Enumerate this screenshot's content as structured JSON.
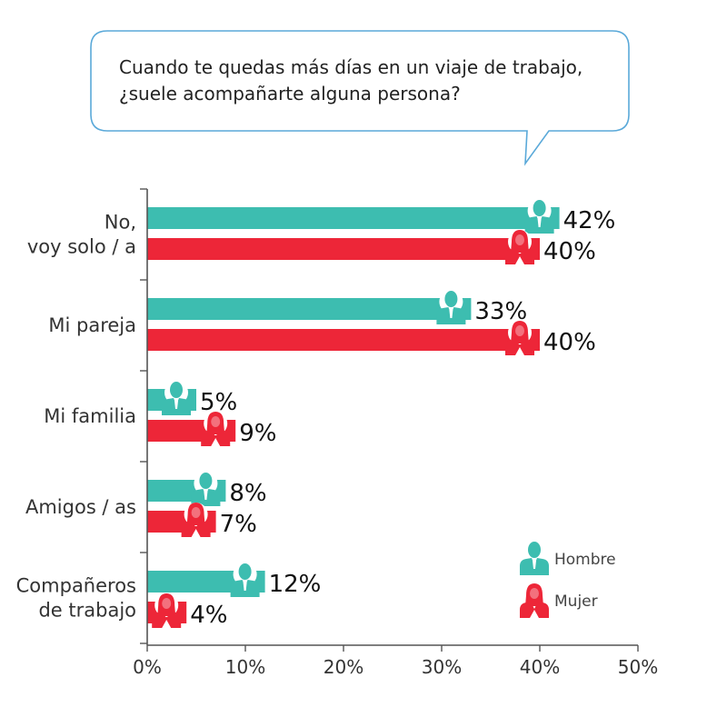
{
  "question": {
    "line1": "Cuando te quedas más días en un viaje de trabajo,",
    "line2": "¿suele acompañarte alguna persona?"
  },
  "legend": {
    "male_label": "Hombre",
    "female_label": "Mujer"
  },
  "colors": {
    "male": "#3dbdb0",
    "female": "#ed2638",
    "axis": "#555555",
    "bubble_border": "#5aa9d9"
  },
  "icons": {
    "male": "man-silhouette-icon",
    "female": "woman-silhouette-icon"
  },
  "chart_data": {
    "type": "bar",
    "orientation": "horizontal",
    "categories": [
      [
        "No,",
        "voy solo / a"
      ],
      [
        "Mi pareja"
      ],
      [
        "Mi familia"
      ],
      [
        "Amigos / as"
      ],
      [
        "Compañeros",
        "de trabajo"
      ]
    ],
    "series": [
      {
        "name": "Hombre",
        "values": [
          42,
          33,
          5,
          8,
          12
        ],
        "labels": [
          "42%",
          "33%",
          "5%",
          "8%",
          "12%"
        ]
      },
      {
        "name": "Mujer",
        "values": [
          40,
          40,
          9,
          7,
          4
        ],
        "labels": [
          "40%",
          "40%",
          "9%",
          "7%",
          "4%"
        ]
      }
    ],
    "xlim": [
      0,
      50
    ],
    "x_ticks": [
      0,
      10,
      20,
      30,
      40,
      50
    ],
    "x_tick_labels": [
      "0%",
      "10%",
      "20%",
      "30%",
      "40%",
      "50%"
    ],
    "legend_position": "bottom-right",
    "grid": false
  }
}
